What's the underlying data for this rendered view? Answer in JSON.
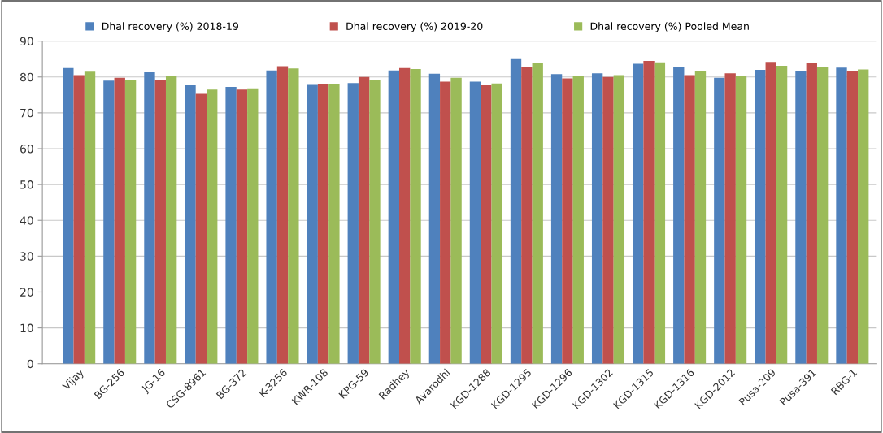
{
  "chart_data": {
    "type": "bar",
    "categories": [
      "Vijay",
      "BG-256",
      "JG-16",
      "CSG-8961",
      "BG-372",
      "K-3256",
      "KWR-108",
      "KPG-59",
      "Radhey",
      "Avarodhi",
      "KGD-1288",
      "KGD-1295",
      "KGD-1296",
      "KGD-1302",
      "KGD-1315",
      "KGD-1316",
      "KGD-2012",
      "Pusa-209",
      "Pusa-391",
      "RBG-1"
    ],
    "series": [
      {
        "name": "Dhal recovery (%) 2018-19",
        "color": "#4f81bd",
        "values": [
          82.5,
          79,
          81.3,
          77.7,
          77.2,
          81.8,
          77.8,
          78.3,
          81.8,
          80.9,
          78.7,
          85,
          80.8,
          81,
          83.7,
          82.8,
          79.8,
          82,
          81.6,
          82.6
        ]
      },
      {
        "name": "Dhal recovery (%) 2019-20",
        "color": "#c0504d",
        "values": [
          80.5,
          79.8,
          79.2,
          75.3,
          76.5,
          83,
          78,
          80,
          82.5,
          78.7,
          77.7,
          82.8,
          79.6,
          80,
          84.5,
          80.5,
          81,
          84.2,
          84,
          81.7
        ]
      },
      {
        "name": "Dhal recovery (%) Pooled Mean",
        "color": "#9bbb59",
        "values": [
          81.5,
          79.2,
          80.2,
          76.5,
          76.8,
          82.4,
          77.9,
          79.1,
          82.2,
          79.8,
          78.2,
          83.9,
          80.2,
          80.5,
          84.1,
          81.6,
          80.4,
          83.1,
          82.8,
          82.1
        ]
      }
    ],
    "ylim": [
      0,
      90
    ],
    "yticks": [
      0,
      10,
      20,
      30,
      40,
      50,
      60,
      70,
      80,
      90
    ],
    "grid": "y",
    "legend": "top"
  }
}
